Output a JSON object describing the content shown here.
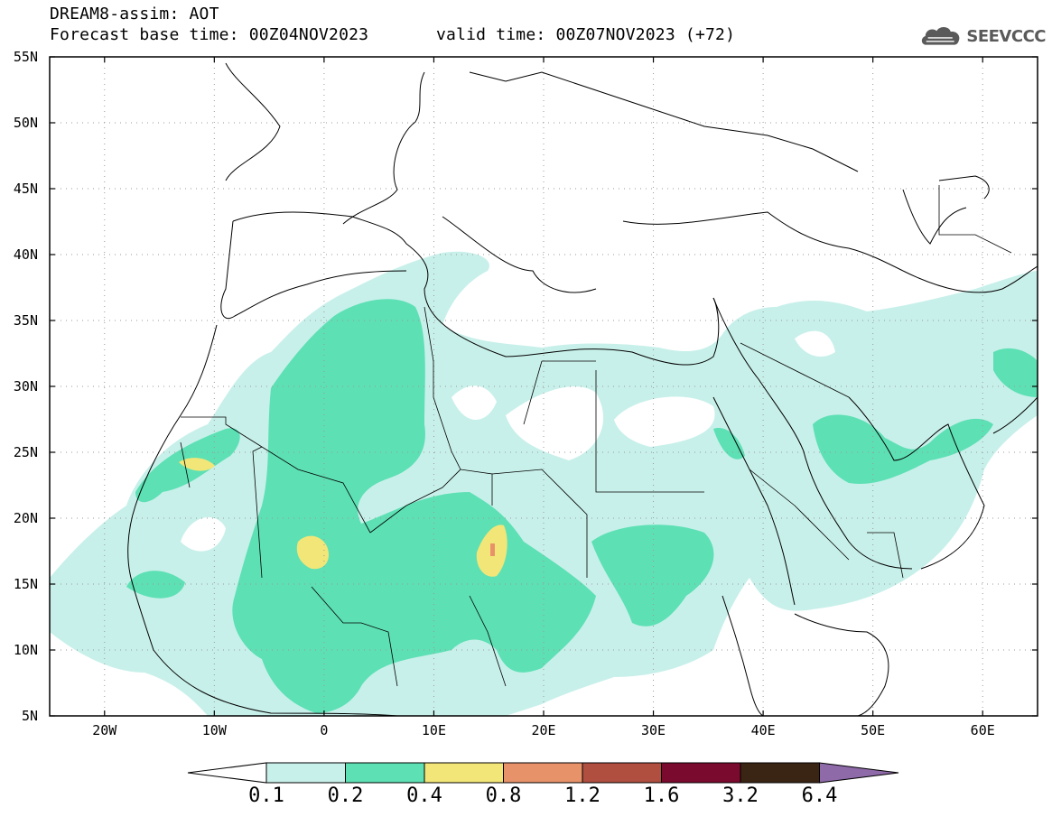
{
  "header": {
    "title": "DREAM8-assim: AOT",
    "base_time": "Forecast base time: 00Z04NOV2023",
    "valid_time": "valid time: 00Z07NOV2023 (+72)"
  },
  "logo": {
    "text": "SEEVCCC",
    "icon": "cloud-logo-icon"
  },
  "map": {
    "lat_labels": [
      "55N",
      "50N",
      "45N",
      "40N",
      "35N",
      "30N",
      "25N",
      "20N",
      "15N",
      "10N",
      "5N"
    ],
    "lon_labels": [
      "20W",
      "10W",
      "0",
      "10E",
      "20E",
      "30E",
      "40E",
      "50E",
      "60E"
    ],
    "lat_range": [
      5,
      55
    ],
    "lon_range": [
      -25,
      65
    ],
    "grid": "dotted"
  },
  "colorbar": {
    "levels": [
      "0.1",
      "0.2",
      "0.4",
      "0.8",
      "1.2",
      "1.6",
      "3.2",
      "6.4"
    ],
    "colors": [
      "#c8f0ea",
      "#5de0b4",
      "#f2e678",
      "#e8926a",
      "#b04e40",
      "#7a0a2e",
      "#3a2414",
      "#8e6aa8"
    ],
    "under_color": "#ffffff"
  },
  "colors": {
    "land_outline": "#000000",
    "grid": "#9a9a9a"
  }
}
